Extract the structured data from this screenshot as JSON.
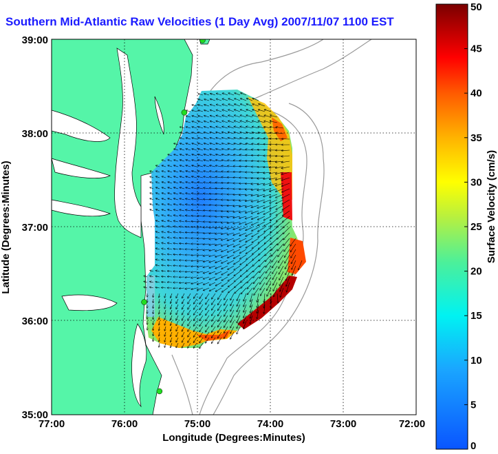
{
  "title": "Southern Mid-Atlantic Raw Velocities (1 Day Avg) 2007/11/07 1100 EST",
  "chart_data": {
    "type": "vector field map",
    "xlabel": "Longitude (Degrees:Minutes)",
    "ylabel": "Latitude (Degrees:Minutes)",
    "x_ticks": [
      "77:00",
      "76:00",
      "75:00",
      "74:00",
      "73:00",
      "72:00"
    ],
    "y_ticks": [
      "39:00",
      "38:00",
      "37:00",
      "36:00",
      "35:00"
    ],
    "xlim": [
      -77,
      -72
    ],
    "ylim": [
      35,
      39
    ],
    "grid": "dotted",
    "colorbar": {
      "label": "Surface Velocity (cm/s)",
      "range": [
        0,
        50
      ],
      "ticks": [
        "50",
        "45",
        "40",
        "35",
        "30",
        "25",
        "20",
        "15",
        "10",
        "5",
        "0"
      ]
    },
    "land_color": "#55f5a8",
    "ocean_color": "#ffffff",
    "station_color": "#22dd22",
    "stations": [
      {
        "lon": -74.93,
        "lat": 38.99
      },
      {
        "lon": -75.18,
        "lat": 38.22
      },
      {
        "lon": -75.73,
        "lat": 36.2
      },
      {
        "lon": -75.52,
        "lat": 35.25
      }
    ]
  }
}
